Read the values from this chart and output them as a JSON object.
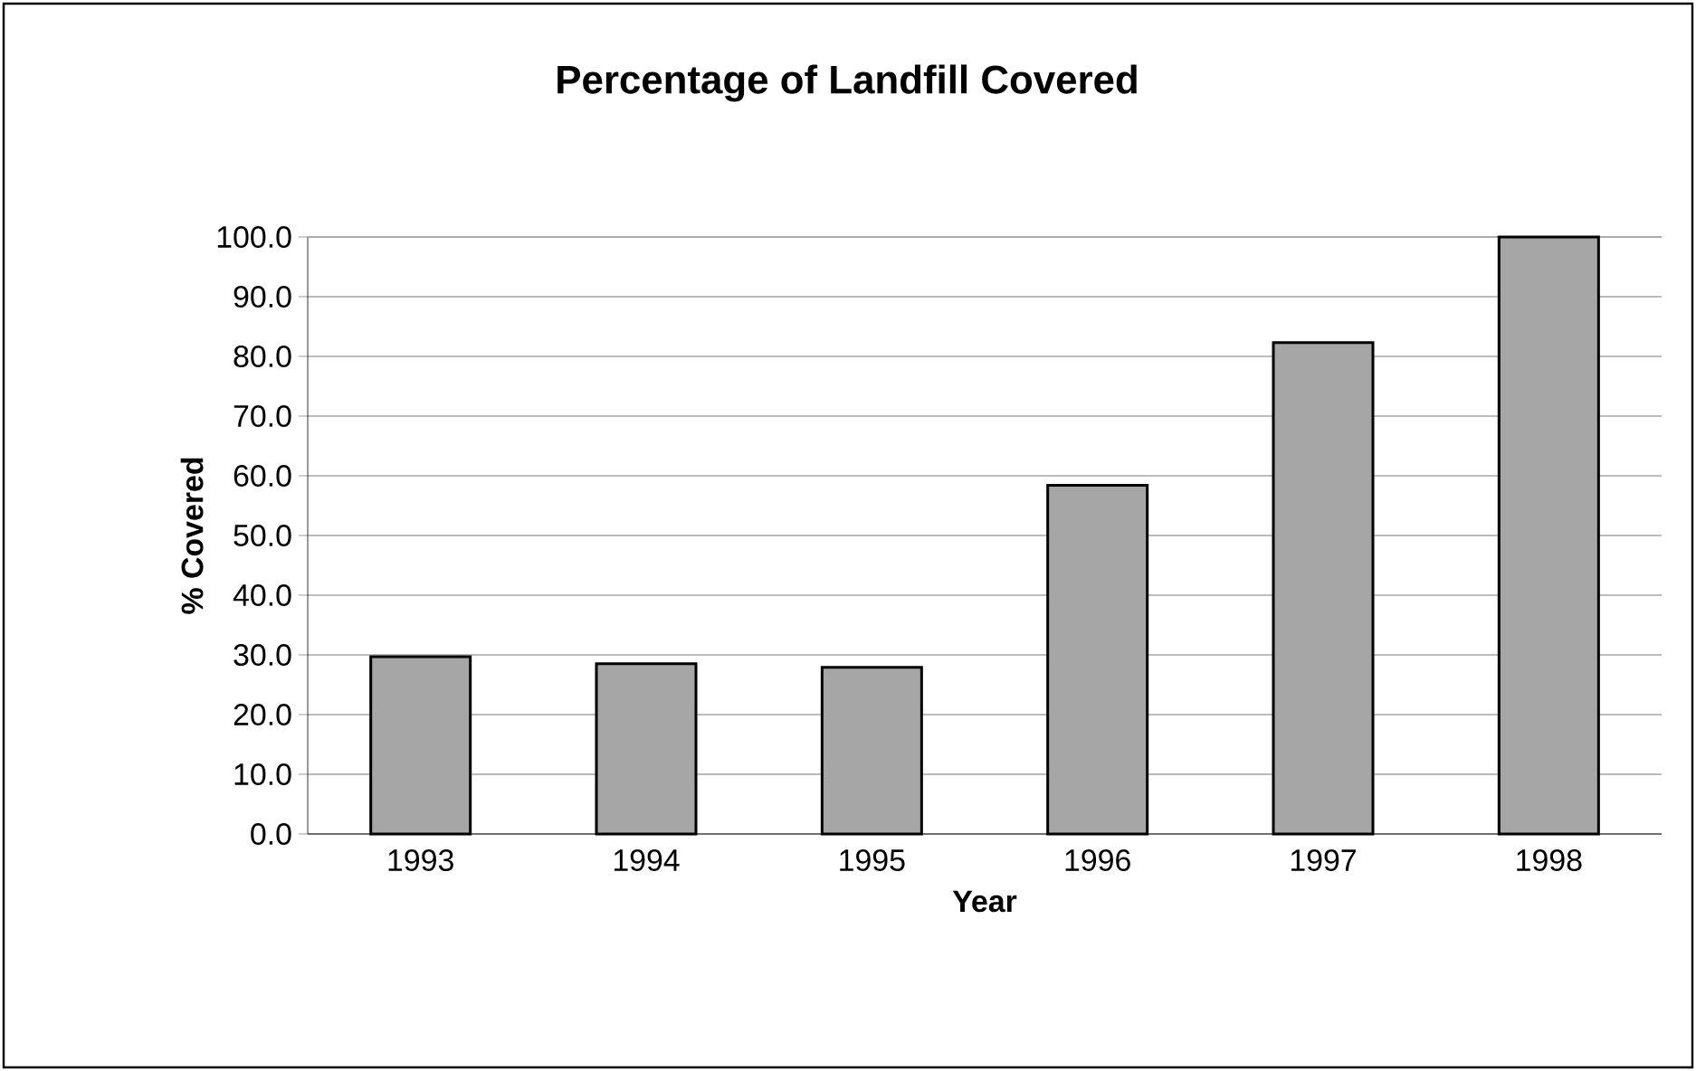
{
  "chart_data": {
    "type": "bar",
    "title": "Percentage of Landfill Covered",
    "xlabel": "Year",
    "ylabel": "% Covered",
    "categories": [
      "1993",
      "1994",
      "1995",
      "1996",
      "1997",
      "1998"
    ],
    "values": [
      29.7,
      28.5,
      27.9,
      58.4,
      82.3,
      100.0
    ],
    "color": "#a6a6a6",
    "ylim": [
      0,
      100
    ],
    "yticks": [
      {
        "value": 0,
        "label": "0.0"
      },
      {
        "value": 10,
        "label": "10.0"
      },
      {
        "value": 20,
        "label": "20.0"
      },
      {
        "value": 30,
        "label": "30.0"
      },
      {
        "value": 40,
        "label": "40.0"
      },
      {
        "value": 50,
        "label": "50.0"
      },
      {
        "value": 60,
        "label": "60.0"
      },
      {
        "value": 70,
        "label": "70.0"
      },
      {
        "value": 80,
        "label": "80.0"
      },
      {
        "value": 90,
        "label": "90.0"
      },
      {
        "value": 100,
        "label": "100.0"
      }
    ],
    "grid": "y"
  }
}
